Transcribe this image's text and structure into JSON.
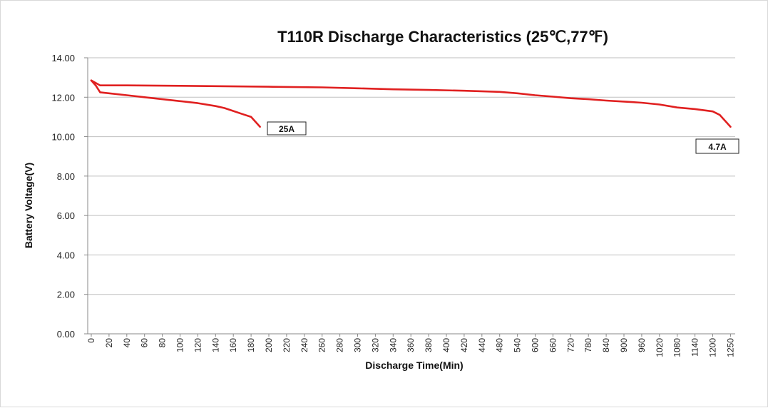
{
  "chart_data": {
    "type": "line",
    "title": "T110R  Discharge Characteristics (25℃,77℉)",
    "xlabel": "Discharge Time(Min)",
    "ylabel": "Battery Voltage(V)",
    "ylim": [
      0,
      14
    ],
    "y_ticks": [
      "0.00",
      "2.00",
      "4.00",
      "6.00",
      "8.00",
      "10.00",
      "12.00",
      "14.00"
    ],
    "x_ticks": [
      "0",
      "20",
      "40",
      "60",
      "80",
      "100",
      "120",
      "140",
      "160",
      "180",
      "200",
      "220",
      "240",
      "260",
      "280",
      "300",
      "320",
      "340",
      "360",
      "380",
      "400",
      "420",
      "440",
      "480",
      "540",
      "600",
      "660",
      "720",
      "780",
      "840",
      "900",
      "960",
      "1020",
      "1080",
      "1140",
      "1200",
      "1250"
    ],
    "grid": true,
    "series": [
      {
        "name": "25A",
        "color": "#e02020",
        "points": [
          [
            0,
            12.85
          ],
          [
            5,
            12.6
          ],
          [
            10,
            12.25
          ],
          [
            20,
            12.2
          ],
          [
            40,
            12.1
          ],
          [
            60,
            12.0
          ],
          [
            80,
            11.9
          ],
          [
            100,
            11.8
          ],
          [
            120,
            11.7
          ],
          [
            140,
            11.55
          ],
          [
            150,
            11.45
          ],
          [
            160,
            11.3
          ],
          [
            170,
            11.15
          ],
          [
            180,
            11.0
          ],
          [
            190,
            10.5
          ]
        ]
      },
      {
        "name": "4.7A",
        "color": "#e02020",
        "points": [
          [
            0,
            12.85
          ],
          [
            10,
            12.6
          ],
          [
            40,
            12.6
          ],
          [
            100,
            12.58
          ],
          [
            200,
            12.53
          ],
          [
            260,
            12.5
          ],
          [
            300,
            12.45
          ],
          [
            340,
            12.4
          ],
          [
            380,
            12.37
          ],
          [
            420,
            12.33
          ],
          [
            480,
            12.27
          ],
          [
            540,
            12.2
          ],
          [
            600,
            12.1
          ],
          [
            660,
            12.03
          ],
          [
            720,
            11.95
          ],
          [
            780,
            11.9
          ],
          [
            840,
            11.83
          ],
          [
            900,
            11.78
          ],
          [
            960,
            11.72
          ],
          [
            1020,
            11.63
          ],
          [
            1080,
            11.48
          ],
          [
            1140,
            11.4
          ],
          [
            1200,
            11.28
          ],
          [
            1220,
            11.1
          ],
          [
            1250,
            10.5
          ]
        ]
      }
    ],
    "annotations": [
      "25A",
      "4.7A"
    ]
  }
}
